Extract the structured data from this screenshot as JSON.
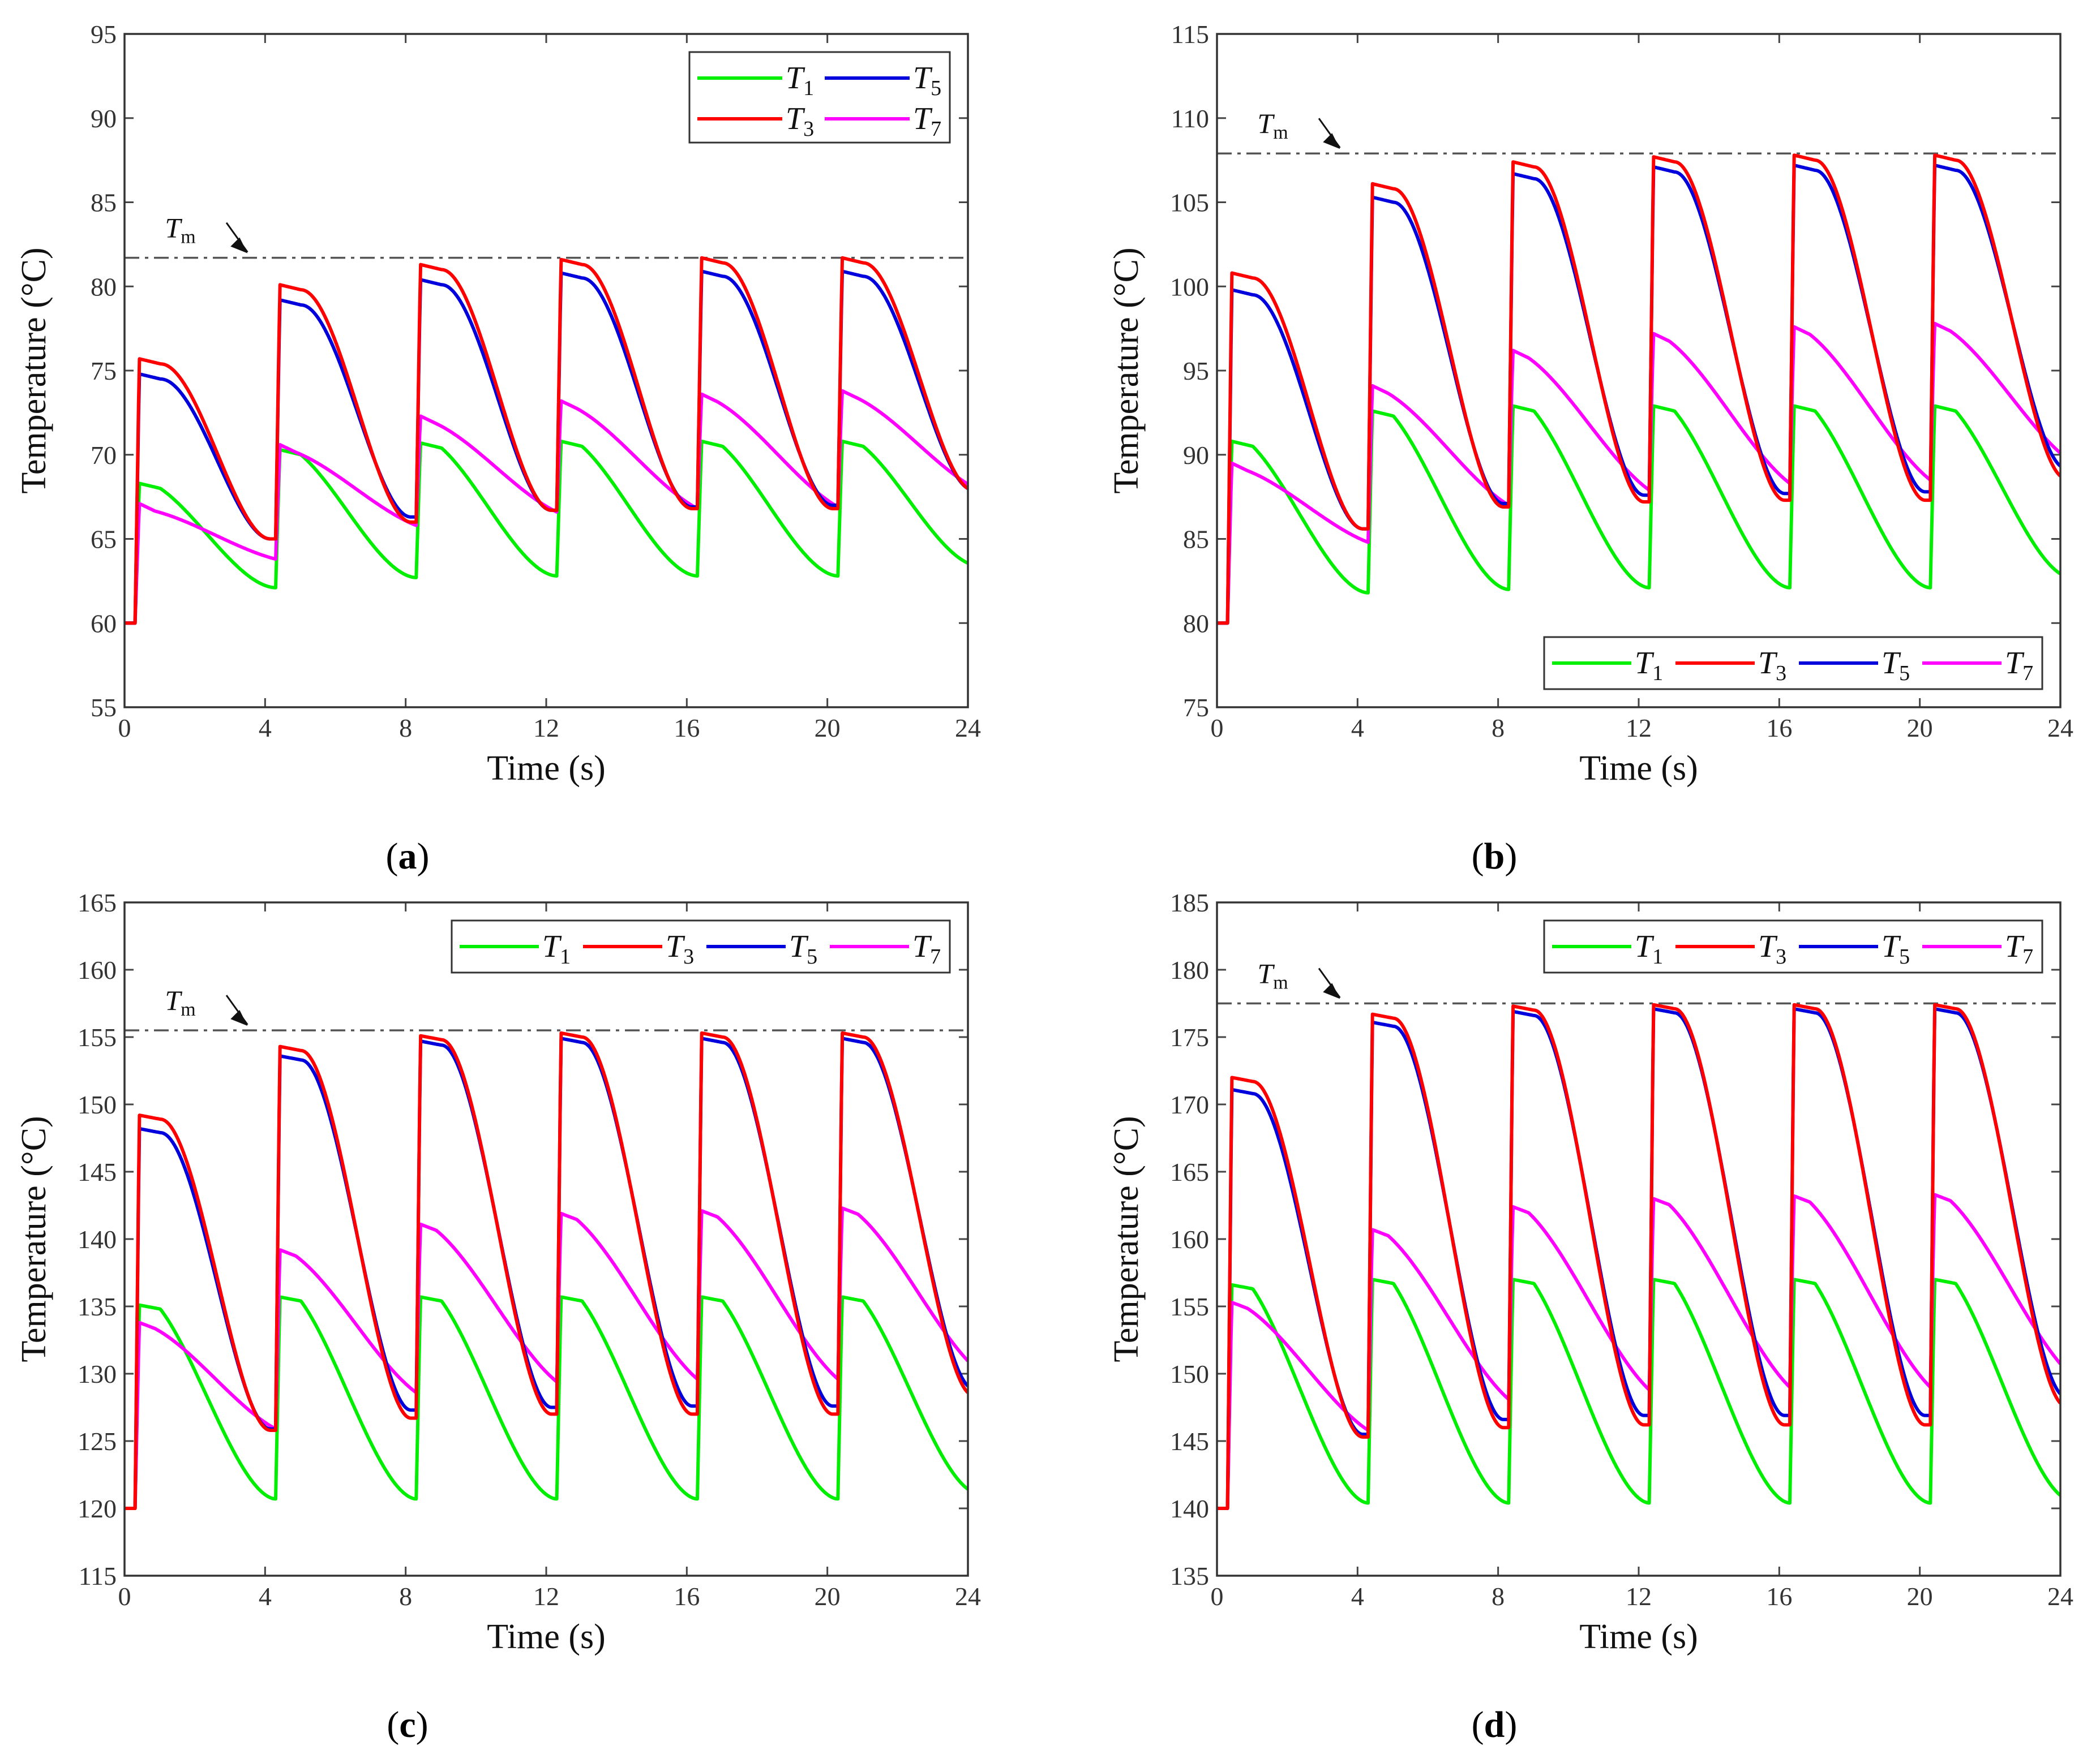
{
  "figure": {
    "series_colors": {
      "T1": "#00ee00",
      "T3": "#ff0000",
      "T5": "#0000dd",
      "T7": "#ff00ff"
    },
    "tm_line_color": "#555555"
  },
  "chart_data": [
    {
      "id": "a",
      "type": "line",
      "panel_label": "a",
      "xlabel": "Time (s)",
      "ylabel": "Temperature (°C)",
      "xlim": [
        0,
        24
      ],
      "ylim": [
        55,
        95
      ],
      "xticks": [
        0,
        4,
        8,
        12,
        16,
        20,
        24
      ],
      "yticks": [
        55,
        60,
        65,
        70,
        75,
        80,
        85,
        90,
        95
      ],
      "legend_position": "top-right",
      "legend_columns": 2,
      "legend_order": [
        "T1",
        "T5",
        "T3",
        "T7"
      ],
      "tm": {
        "label": "T",
        "sub": "m",
        "value": 81.7
      },
      "start": 60,
      "series": [
        {
          "key": "T1",
          "name": "T",
          "sub": "1",
          "color": "#00ee00",
          "kind": "outer",
          "peaks": [
            68.3,
            70.3,
            70.7,
            70.8,
            70.8,
            70.8
          ],
          "troughs": [
            62.1,
            62.7,
            62.8,
            62.8,
            62.8,
            63.4
          ]
        },
        {
          "key": "T3",
          "name": "T",
          "sub": "3",
          "color": "#ff0000",
          "kind": "inner",
          "peaks": [
            75.7,
            80.1,
            81.3,
            81.6,
            81.7,
            81.7
          ],
          "troughs": [
            65.0,
            66.0,
            66.7,
            66.8,
            66.8,
            67.9
          ]
        },
        {
          "key": "T5",
          "name": "T",
          "sub": "5",
          "color": "#0000dd",
          "kind": "inner",
          "peaks": [
            74.8,
            79.2,
            80.4,
            80.8,
            80.9,
            80.9
          ],
          "troughs": [
            65.0,
            66.3,
            66.7,
            66.9,
            67.0,
            67.9
          ]
        },
        {
          "key": "T7",
          "name": "T",
          "sub": "7",
          "color": "#ff00ff",
          "kind": "mid",
          "peaks": [
            67.1,
            70.6,
            72.3,
            73.2,
            73.6,
            73.8
          ],
          "troughs": [
            63.8,
            65.8,
            66.6,
            66.8,
            66.9,
            67.9
          ]
        }
      ]
    },
    {
      "id": "b",
      "type": "line",
      "panel_label": "b",
      "xlabel": "Time (s)",
      "ylabel": "Temperature (°C)",
      "xlim": [
        0,
        24
      ],
      "ylim": [
        75,
        115
      ],
      "xticks": [
        0,
        4,
        8,
        12,
        16,
        20,
        24
      ],
      "yticks": [
        75,
        80,
        85,
        90,
        95,
        100,
        105,
        110,
        115
      ],
      "legend_position": "bottom-right",
      "legend_columns": 4,
      "legend_order": [
        "T1",
        "T3",
        "T5",
        "T7"
      ],
      "tm": {
        "label": "T",
        "sub": "m",
        "value": 107.9
      },
      "start": 80,
      "series": [
        {
          "key": "T1",
          "name": "T",
          "sub": "1",
          "color": "#00ee00",
          "kind": "outer",
          "peaks": [
            90.8,
            92.6,
            92.9,
            92.9,
            92.9,
            92.9
          ],
          "troughs": [
            81.8,
            82.0,
            82.1,
            82.1,
            82.1,
            82.7
          ]
        },
        {
          "key": "T3",
          "name": "T",
          "sub": "3",
          "color": "#ff0000",
          "kind": "inner",
          "peaks": [
            100.8,
            106.1,
            107.4,
            107.7,
            107.8,
            107.8
          ],
          "troughs": [
            85.6,
            86.9,
            87.2,
            87.3,
            87.3,
            88.6
          ]
        },
        {
          "key": "T5",
          "name": "T",
          "sub": "5",
          "color": "#0000dd",
          "kind": "inner",
          "peaks": [
            99.8,
            105.3,
            106.7,
            107.1,
            107.2,
            107.2
          ],
          "troughs": [
            85.6,
            87.1,
            87.6,
            87.7,
            87.8,
            89.2
          ]
        },
        {
          "key": "T7",
          "name": "T",
          "sub": "7",
          "color": "#ff00ff",
          "kind": "mid",
          "peaks": [
            89.5,
            94.1,
            96.2,
            97.2,
            97.6,
            97.8
          ],
          "troughs": [
            84.8,
            87.0,
            87.9,
            88.3,
            88.5,
            89.6
          ]
        }
      ]
    },
    {
      "id": "c",
      "type": "line",
      "panel_label": "c",
      "xlabel": "Time (s)",
      "ylabel": "Temperature (°C)",
      "xlim": [
        0,
        24
      ],
      "ylim": [
        115,
        165
      ],
      "xticks": [
        0,
        4,
        8,
        12,
        16,
        20,
        24
      ],
      "yticks": [
        115,
        120,
        125,
        130,
        135,
        140,
        145,
        150,
        155,
        160,
        165
      ],
      "legend_position": "top-right",
      "legend_columns": 4,
      "legend_order": [
        "T1",
        "T3",
        "T5",
        "T7"
      ],
      "tm": {
        "label": "T",
        "sub": "m",
        "value": 155.5
      },
      "start": 120,
      "series": [
        {
          "key": "T1",
          "name": "T",
          "sub": "1",
          "color": "#00ee00",
          "kind": "outer",
          "peaks": [
            135.1,
            135.7,
            135.7,
            135.7,
            135.7,
            135.7
          ],
          "troughs": [
            120.7,
            120.7,
            120.7,
            120.7,
            120.7,
            121.1
          ]
        },
        {
          "key": "T3",
          "name": "T",
          "sub": "3",
          "color": "#ff0000",
          "kind": "inner",
          "peaks": [
            149.2,
            154.3,
            155.1,
            155.3,
            155.3,
            155.3
          ],
          "troughs": [
            125.8,
            126.7,
            127.0,
            127.0,
            127.0,
            128.4
          ]
        },
        {
          "key": "T5",
          "name": "T",
          "sub": "5",
          "color": "#0000dd",
          "kind": "inner",
          "peaks": [
            148.2,
            153.6,
            154.7,
            154.9,
            154.9,
            154.9
          ],
          "troughs": [
            125.9,
            127.3,
            127.5,
            127.6,
            127.6,
            128.9
          ]
        },
        {
          "key": "T7",
          "name": "T",
          "sub": "7",
          "color": "#ff00ff",
          "kind": "mid",
          "peaks": [
            133.8,
            139.2,
            141.1,
            141.9,
            142.1,
            142.3
          ],
          "troughs": [
            125.9,
            128.6,
            129.4,
            129.6,
            129.6,
            130.2
          ]
        }
      ]
    },
    {
      "id": "d",
      "type": "line",
      "panel_label": "d",
      "xlabel": "Time (s)",
      "ylabel": "Temperature (°C)",
      "xlim": [
        0,
        24
      ],
      "ylim": [
        135,
        185
      ],
      "xticks": [
        0,
        4,
        8,
        12,
        16,
        20,
        24
      ],
      "yticks": [
        135,
        140,
        145,
        150,
        155,
        160,
        165,
        170,
        175,
        180,
        185
      ],
      "legend_position": "top-right",
      "legend_columns": 4,
      "legend_order": [
        "T1",
        "T3",
        "T5",
        "T7"
      ],
      "tm": {
        "label": "T",
        "sub": "m",
        "value": 177.5
      },
      "start": 140,
      "series": [
        {
          "key": "T1",
          "name": "T",
          "sub": "1",
          "color": "#00ee00",
          "kind": "outer",
          "peaks": [
            156.6,
            157.0,
            157.0,
            157.0,
            157.0,
            157.0
          ],
          "troughs": [
            140.4,
            140.4,
            140.4,
            140.4,
            140.4,
            140.6
          ]
        },
        {
          "key": "T3",
          "name": "T",
          "sub": "3",
          "color": "#ff0000",
          "kind": "inner",
          "peaks": [
            172.0,
            176.7,
            177.3,
            177.4,
            177.4,
            177.4
          ],
          "troughs": [
            145.3,
            146.0,
            146.2,
            146.2,
            146.2,
            147.6
          ]
        },
        {
          "key": "T5",
          "name": "T",
          "sub": "5",
          "color": "#0000dd",
          "kind": "inner",
          "peaks": [
            171.1,
            176.1,
            176.9,
            177.1,
            177.1,
            177.1
          ],
          "troughs": [
            145.5,
            146.6,
            146.9,
            146.9,
            146.9,
            148.3
          ]
        },
        {
          "key": "T7",
          "name": "T",
          "sub": "7",
          "color": "#ff00ff",
          "kind": "mid",
          "peaks": [
            155.3,
            160.7,
            162.4,
            163.0,
            163.2,
            163.3
          ],
          "troughs": [
            145.8,
            148.1,
            148.8,
            149.0,
            149.0,
            149.9
          ]
        }
      ]
    }
  ]
}
